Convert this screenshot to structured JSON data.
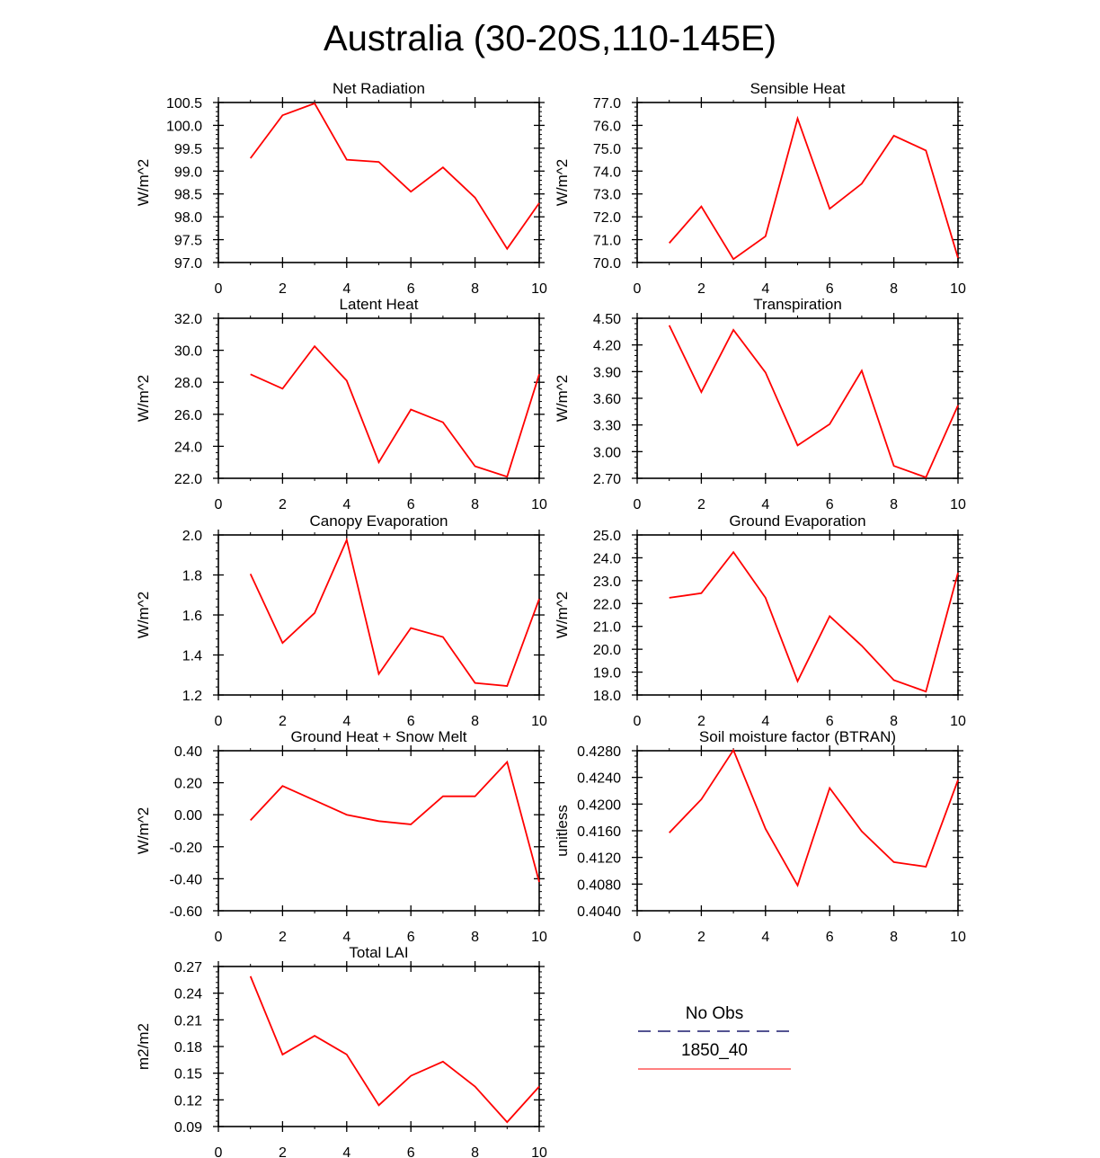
{
  "figure": {
    "title": "Australia (30-20S,110-145E)"
  },
  "legend": {
    "entries": [
      {
        "label": "No Obs",
        "color": "#1a1a6e",
        "style": "dashed"
      },
      {
        "label": "1850_40",
        "color": "#ff0000",
        "style": "solid"
      }
    ]
  },
  "chart_data": [
    {
      "type": "line",
      "title": "Net Radiation",
      "ylabel": "W/m^2",
      "xlabel": "",
      "xlim": [
        0,
        10
      ],
      "xticks": [
        0,
        2,
        4,
        6,
        8,
        10
      ],
      "ylim": [
        97.0,
        100.5
      ],
      "yticks": [
        97.0,
        97.5,
        98.0,
        98.5,
        99.0,
        99.5,
        100.0,
        100.5
      ],
      "ydecimals": 1,
      "series": [
        {
          "name": "1850_40",
          "color": "#ff0000",
          "x": [
            1,
            2,
            3,
            4,
            5,
            6,
            7,
            8,
            9,
            10
          ],
          "values": [
            99.28,
            100.22,
            100.48,
            99.25,
            99.2,
            98.55,
            99.08,
            98.42,
            97.3,
            98.3
          ]
        }
      ]
    },
    {
      "type": "line",
      "title": "Sensible Heat",
      "ylabel": "W/m^2",
      "xlabel": "",
      "xlim": [
        0,
        10
      ],
      "xticks": [
        0,
        2,
        4,
        6,
        8,
        10
      ],
      "ylim": [
        70.0,
        77.0
      ],
      "yticks": [
        70.0,
        71.0,
        72.0,
        73.0,
        74.0,
        75.0,
        76.0,
        77.0
      ],
      "ydecimals": 1,
      "series": [
        {
          "name": "1850_40",
          "color": "#ff0000",
          "x": [
            1,
            2,
            3,
            4,
            5,
            6,
            7,
            8,
            9,
            10
          ],
          "values": [
            70.85,
            72.45,
            70.15,
            71.15,
            76.3,
            72.35,
            73.45,
            75.55,
            74.9,
            70.2
          ]
        }
      ]
    },
    {
      "type": "line",
      "title": "Latent Heat",
      "ylabel": "W/m^2",
      "xlabel": "",
      "xlim": [
        0,
        10
      ],
      "xticks": [
        0,
        2,
        4,
        6,
        8,
        10
      ],
      "ylim": [
        22.0,
        32.0
      ],
      "yticks": [
        22.0,
        24.0,
        26.0,
        28.0,
        30.0,
        32.0
      ],
      "ydecimals": 1,
      "series": [
        {
          "name": "1850_40",
          "color": "#ff0000",
          "x": [
            1,
            2,
            3,
            4,
            5,
            6,
            7,
            8,
            9,
            10
          ],
          "values": [
            28.5,
            27.6,
            30.25,
            28.1,
            23.0,
            26.3,
            25.5,
            22.75,
            22.1,
            28.5
          ]
        }
      ]
    },
    {
      "type": "line",
      "title": "Transpiration",
      "ylabel": "W/m^2",
      "xlabel": "",
      "xlim": [
        0,
        10
      ],
      "xticks": [
        0,
        2,
        4,
        6,
        8,
        10
      ],
      "ylim": [
        2.7,
        4.5
      ],
      "yticks": [
        2.7,
        3.0,
        3.3,
        3.6,
        3.9,
        4.2,
        4.5
      ],
      "ydecimals": 2,
      "series": [
        {
          "name": "1850_40",
          "color": "#ff0000",
          "x": [
            1,
            2,
            3,
            4,
            5,
            6,
            7,
            8,
            9,
            10
          ],
          "values": [
            4.42,
            3.67,
            4.37,
            3.89,
            3.07,
            3.31,
            3.91,
            2.84,
            2.71,
            3.52
          ]
        }
      ]
    },
    {
      "type": "line",
      "title": "Canopy Evaporation",
      "ylabel": "W/m^2",
      "xlabel": "",
      "xlim": [
        0,
        10
      ],
      "xticks": [
        0,
        2,
        4,
        6,
        8,
        10
      ],
      "ylim": [
        1.2,
        2.0
      ],
      "yticks": [
        1.2,
        1.4,
        1.6,
        1.8,
        2.0
      ],
      "ydecimals": 1,
      "series": [
        {
          "name": "1850_40",
          "color": "#ff0000",
          "x": [
            1,
            2,
            3,
            4,
            5,
            6,
            7,
            8,
            9,
            10
          ],
          "values": [
            1.805,
            1.46,
            1.61,
            1.975,
            1.305,
            1.535,
            1.49,
            1.26,
            1.245,
            1.68
          ]
        }
      ]
    },
    {
      "type": "line",
      "title": "Ground Evaporation",
      "ylabel": "W/m^2",
      "xlabel": "",
      "xlim": [
        0,
        10
      ],
      "xticks": [
        0,
        2,
        4,
        6,
        8,
        10
      ],
      "ylim": [
        18.0,
        25.0
      ],
      "yticks": [
        18.0,
        19.0,
        20.0,
        21.0,
        22.0,
        23.0,
        24.0,
        25.0
      ],
      "ydecimals": 1,
      "series": [
        {
          "name": "1850_40",
          "color": "#ff0000",
          "x": [
            1,
            2,
            3,
            4,
            5,
            6,
            7,
            8,
            9,
            10
          ],
          "values": [
            22.25,
            22.45,
            24.25,
            22.25,
            18.6,
            21.45,
            20.15,
            18.65,
            18.15,
            23.35
          ]
        }
      ]
    },
    {
      "type": "line",
      "title": "Ground Heat + Snow Melt",
      "ylabel": "W/m^2",
      "xlabel": "",
      "xlim": [
        0,
        10
      ],
      "xticks": [
        0,
        2,
        4,
        6,
        8,
        10
      ],
      "ylim": [
        -0.6,
        0.4
      ],
      "yticks": [
        -0.6,
        -0.4,
        -0.2,
        0.0,
        0.2,
        0.4
      ],
      "ydecimals": 2,
      "series": [
        {
          "name": "1850_40",
          "color": "#ff0000",
          "x": [
            1,
            2,
            3,
            4,
            5,
            6,
            7,
            8,
            9,
            10
          ],
          "values": [
            -0.035,
            0.18,
            0.09,
            0.0,
            -0.04,
            -0.06,
            0.115,
            0.115,
            0.33,
            -0.42
          ]
        }
      ]
    },
    {
      "type": "line",
      "title": "Soil moisture factor (BTRAN)",
      "ylabel": "unitless",
      "xlabel": "",
      "xlim": [
        0,
        10
      ],
      "xticks": [
        0,
        2,
        4,
        6,
        8,
        10
      ],
      "ylim": [
        0.404,
        0.428
      ],
      "yticks": [
        0.404,
        0.408,
        0.412,
        0.416,
        0.42,
        0.424,
        0.428
      ],
      "ydecimals": 4,
      "series": [
        {
          "name": "1850_40",
          "color": "#ff0000",
          "x": [
            1,
            2,
            3,
            4,
            5,
            6,
            7,
            8,
            9,
            10
          ],
          "values": [
            0.4157,
            0.4207,
            0.4281,
            0.4163,
            0.4078,
            0.4224,
            0.4159,
            0.4113,
            0.4106,
            0.4236
          ]
        }
      ]
    },
    {
      "type": "line",
      "title": "Total LAI",
      "ylabel": "m2/m2",
      "xlabel": "",
      "xlim": [
        0,
        10
      ],
      "xticks": [
        0,
        2,
        4,
        6,
        8,
        10
      ],
      "ylim": [
        0.09,
        0.27
      ],
      "yticks": [
        0.09,
        0.12,
        0.15,
        0.18,
        0.21,
        0.24,
        0.27
      ],
      "ydecimals": 2,
      "series": [
        {
          "name": "1850_40",
          "color": "#ff0000",
          "x": [
            1,
            2,
            3,
            4,
            5,
            6,
            7,
            8,
            9,
            10
          ],
          "values": [
            0.259,
            0.171,
            0.192,
            0.171,
            0.114,
            0.147,
            0.163,
            0.135,
            0.095,
            0.135
          ]
        }
      ]
    }
  ]
}
